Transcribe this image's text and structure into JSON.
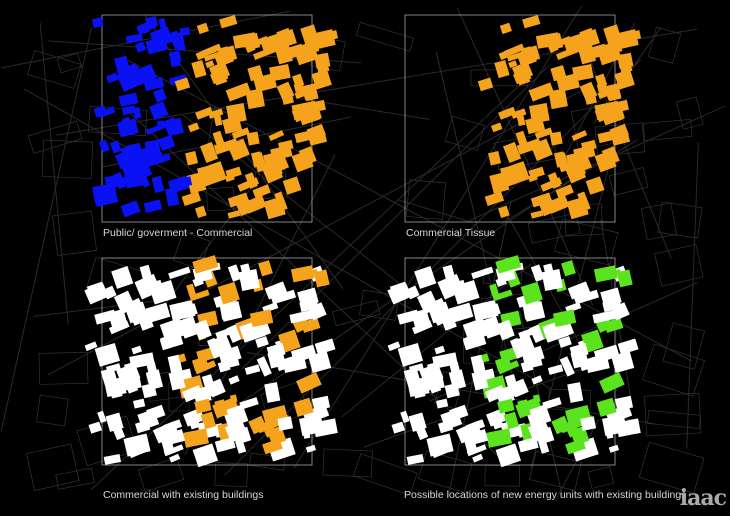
{
  "panels": [
    {
      "label": "Public/ goverment - Commercial",
      "legend_colors": {
        "public_government": "#0a12f5",
        "commercial": "#f5a31c"
      }
    },
    {
      "label": "Commercial Tissue",
      "legend_colors": {
        "commercial": "#f5a31c"
      }
    },
    {
      "label": "Commercial with existing buildings",
      "legend_colors": {
        "existing_buildings": "#ffffff",
        "commercial": "#f5a31c"
      }
    },
    {
      "label": "Possible locations of new energy units with existing buildings",
      "legend_colors": {
        "existing_buildings": "#ffffff",
        "energy_units": "#5be41e"
      }
    }
  ],
  "logo": "iaac",
  "background": "#000000",
  "street_grid_color": "#3a3a3a"
}
